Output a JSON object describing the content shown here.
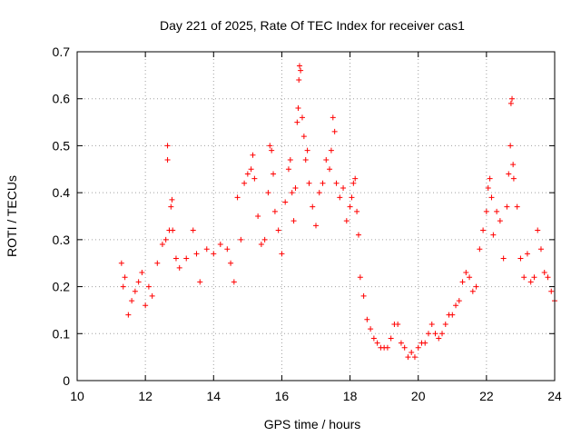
{
  "chart_data": {
    "type": "scatter",
    "title": "Day 221 of 2025, Rate Of TEC Index for receiver cas1",
    "xlabel": "GPS time / hours",
    "ylabel": "ROTI / TECUs",
    "xlim": [
      10,
      24
    ],
    "ylim": [
      0,
      0.7
    ],
    "x_ticks": [
      10,
      12,
      14,
      16,
      18,
      20,
      22,
      24
    ],
    "y_ticks": [
      0,
      0.1,
      0.2,
      0.3,
      0.4,
      0.5,
      0.6,
      0.7
    ],
    "x_tick_labels": [
      "10",
      "12",
      "14",
      "16",
      "18",
      "20",
      "22",
      "24"
    ],
    "y_tick_labels": [
      "0",
      "0.1",
      "0.2",
      "0.3",
      "0.4",
      "0.5",
      "0.6",
      "0.7"
    ],
    "grid": true,
    "marker": "+",
    "color": "#ff0000",
    "series": [
      {
        "name": "ROTI",
        "points": [
          [
            11.3,
            0.25
          ],
          [
            11.35,
            0.2
          ],
          [
            11.4,
            0.22
          ],
          [
            11.5,
            0.14
          ],
          [
            11.6,
            0.17
          ],
          [
            11.7,
            0.19
          ],
          [
            11.8,
            0.21
          ],
          [
            11.9,
            0.23
          ],
          [
            12.0,
            0.16
          ],
          [
            12.1,
            0.2
          ],
          [
            12.2,
            0.18
          ],
          [
            12.35,
            0.25
          ],
          [
            12.5,
            0.29
          ],
          [
            12.6,
            0.3
          ],
          [
            12.65,
            0.5
          ],
          [
            12.65,
            0.47
          ],
          [
            12.7,
            0.32
          ],
          [
            12.75,
            0.37
          ],
          [
            12.78,
            0.385
          ],
          [
            12.8,
            0.32
          ],
          [
            12.9,
            0.26
          ],
          [
            13.0,
            0.24
          ],
          [
            13.2,
            0.26
          ],
          [
            13.4,
            0.32
          ],
          [
            13.5,
            0.27
          ],
          [
            13.6,
            0.21
          ],
          [
            13.8,
            0.28
          ],
          [
            14.0,
            0.27
          ],
          [
            14.2,
            0.29
          ],
          [
            14.4,
            0.28
          ],
          [
            14.5,
            0.25
          ],
          [
            14.6,
            0.21
          ],
          [
            14.7,
            0.39
          ],
          [
            14.8,
            0.3
          ],
          [
            14.9,
            0.42
          ],
          [
            15.0,
            0.44
          ],
          [
            15.1,
            0.45
          ],
          [
            15.15,
            0.48
          ],
          [
            15.2,
            0.43
          ],
          [
            15.3,
            0.35
          ],
          [
            15.4,
            0.29
          ],
          [
            15.5,
            0.3
          ],
          [
            15.6,
            0.4
          ],
          [
            15.65,
            0.5
          ],
          [
            15.7,
            0.49
          ],
          [
            15.75,
            0.44
          ],
          [
            15.8,
            0.36
          ],
          [
            15.9,
            0.32
          ],
          [
            16.0,
            0.27
          ],
          [
            16.1,
            0.38
          ],
          [
            16.2,
            0.45
          ],
          [
            16.25,
            0.47
          ],
          [
            16.3,
            0.4
          ],
          [
            16.35,
            0.34
          ],
          [
            16.4,
            0.41
          ],
          [
            16.45,
            0.55
          ],
          [
            16.48,
            0.58
          ],
          [
            16.5,
            0.64
          ],
          [
            16.52,
            0.67
          ],
          [
            16.55,
            0.66
          ],
          [
            16.6,
            0.56
          ],
          [
            16.65,
            0.52
          ],
          [
            16.7,
            0.47
          ],
          [
            16.75,
            0.49
          ],
          [
            16.8,
            0.42
          ],
          [
            16.9,
            0.37
          ],
          [
            17.0,
            0.33
          ],
          [
            17.1,
            0.4
          ],
          [
            17.2,
            0.42
          ],
          [
            17.3,
            0.47
          ],
          [
            17.4,
            0.45
          ],
          [
            17.45,
            0.49
          ],
          [
            17.5,
            0.56
          ],
          [
            17.55,
            0.53
          ],
          [
            17.6,
            0.42
          ],
          [
            17.7,
            0.39
          ],
          [
            17.8,
            0.41
          ],
          [
            17.9,
            0.34
          ],
          [
            18.0,
            0.37
          ],
          [
            18.05,
            0.39
          ],
          [
            18.1,
            0.42
          ],
          [
            18.15,
            0.43
          ],
          [
            18.2,
            0.36
          ],
          [
            18.25,
            0.31
          ],
          [
            18.3,
            0.22
          ],
          [
            18.4,
            0.18
          ],
          [
            18.5,
            0.13
          ],
          [
            18.6,
            0.11
          ],
          [
            18.7,
            0.09
          ],
          [
            18.8,
            0.08
          ],
          [
            18.9,
            0.07
          ],
          [
            19.0,
            0.07
          ],
          [
            19.1,
            0.07
          ],
          [
            19.2,
            0.09
          ],
          [
            19.3,
            0.12
          ],
          [
            19.4,
            0.12
          ],
          [
            19.5,
            0.08
          ],
          [
            19.6,
            0.07
          ],
          [
            19.7,
            0.05
          ],
          [
            19.8,
            0.06
          ],
          [
            19.9,
            0.05
          ],
          [
            20.0,
            0.07
          ],
          [
            20.1,
            0.08
          ],
          [
            20.2,
            0.08
          ],
          [
            20.3,
            0.1
          ],
          [
            20.4,
            0.12
          ],
          [
            20.5,
            0.1
          ],
          [
            20.6,
            0.09
          ],
          [
            20.7,
            0.1
          ],
          [
            20.8,
            0.12
          ],
          [
            20.9,
            0.14
          ],
          [
            21.0,
            0.14
          ],
          [
            21.1,
            0.16
          ],
          [
            21.2,
            0.17
          ],
          [
            21.3,
            0.21
          ],
          [
            21.4,
            0.23
          ],
          [
            21.5,
            0.22
          ],
          [
            21.6,
            0.19
          ],
          [
            21.7,
            0.2
          ],
          [
            21.8,
            0.28
          ],
          [
            21.9,
            0.32
          ],
          [
            22.0,
            0.36
          ],
          [
            22.05,
            0.41
          ],
          [
            22.1,
            0.43
          ],
          [
            22.15,
            0.39
          ],
          [
            22.2,
            0.31
          ],
          [
            22.3,
            0.36
          ],
          [
            22.4,
            0.34
          ],
          [
            22.5,
            0.26
          ],
          [
            22.6,
            0.37
          ],
          [
            22.65,
            0.44
          ],
          [
            22.7,
            0.5
          ],
          [
            22.72,
            0.59
          ],
          [
            22.75,
            0.6
          ],
          [
            22.78,
            0.46
          ],
          [
            22.8,
            0.43
          ],
          [
            22.9,
            0.37
          ],
          [
            23.0,
            0.26
          ],
          [
            23.1,
            0.22
          ],
          [
            23.2,
            0.27
          ],
          [
            23.3,
            0.21
          ],
          [
            23.4,
            0.22
          ],
          [
            23.5,
            0.32
          ],
          [
            23.6,
            0.28
          ],
          [
            23.7,
            0.23
          ],
          [
            23.8,
            0.22
          ],
          [
            23.9,
            0.19
          ],
          [
            24.0,
            0.17
          ]
        ]
      }
    ]
  }
}
